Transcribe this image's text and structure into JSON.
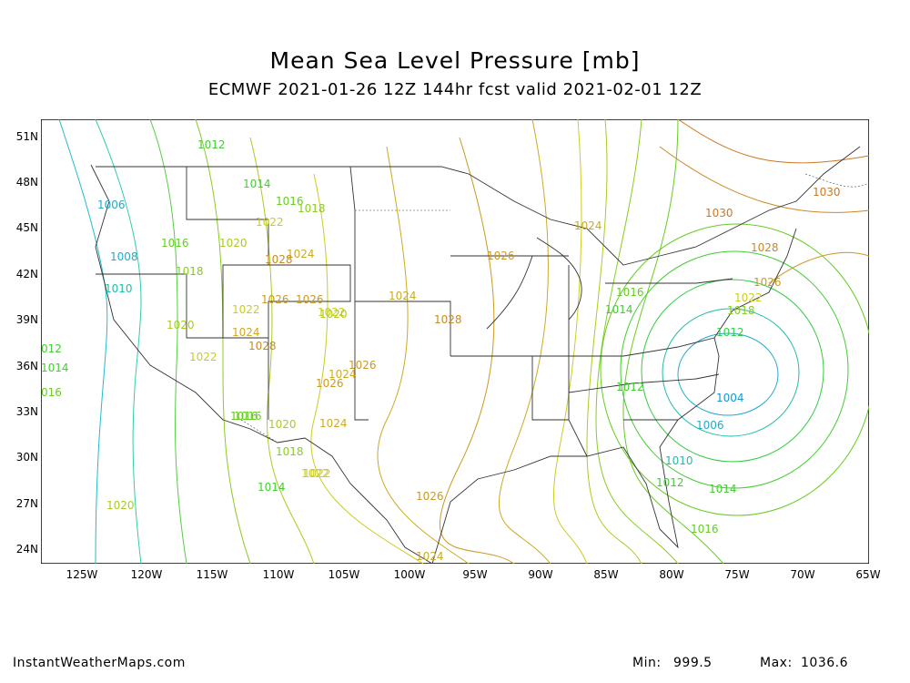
{
  "title": "Mean Sea Level Pressure [mb]",
  "subtitle": "ECMWF 2021-01-26 12Z 144hr fcst valid 2021-02-01 12Z",
  "lat_labels": [
    "51N",
    "48N",
    "45N",
    "42N",
    "39N",
    "36N",
    "33N",
    "30N",
    "27N",
    "24N"
  ],
  "lon_labels": [
    "125W",
    "120W",
    "115W",
    "110W",
    "105W",
    "100W",
    "95W",
    "90W",
    "85W",
    "80W",
    "75W",
    "70W",
    "65W"
  ],
  "isobar_labels": [
    {
      "text": "1012",
      "color": "#44cc33"
    },
    {
      "text": "1014",
      "color": "#44cc33"
    },
    {
      "text": "1016",
      "color": "#66cc22"
    },
    {
      "text": "1018",
      "color": "#88cc22"
    },
    {
      "text": "1006",
      "color": "#22aacc"
    },
    {
      "text": "1016",
      "color": "#66cc22"
    },
    {
      "text": "1008",
      "color": "#22aacc"
    },
    {
      "text": "1018",
      "color": "#88cc22"
    },
    {
      "text": "1010",
      "color": "#22bbaa"
    },
    {
      "text": "1020",
      "color": "#aacc22"
    },
    {
      "text": "1022",
      "color": "#cccc22"
    },
    {
      "text": "1020",
      "color": "#aacc22"
    },
    {
      "text": "1022",
      "color": "#cccc22"
    },
    {
      "text": "1024",
      "color": "#ccaa22"
    },
    {
      "text": "1026",
      "color": "#cc9922"
    },
    {
      "text": "1028",
      "color": "#cc8822"
    },
    {
      "text": "1026",
      "color": "#cc9922"
    },
    {
      "text": "1022",
      "color": "#cccc22"
    },
    {
      "text": "1024",
      "color": "#ccaa22"
    },
    {
      "text": "1028",
      "color": "#cc8822"
    },
    {
      "text": "1022",
      "color": "#cccc22"
    },
    {
      "text": "1024",
      "color": "#ccaa22"
    },
    {
      "text": "1026",
      "color": "#cc9922"
    },
    {
      "text": "1026",
      "color": "#cc9922"
    },
    {
      "text": "1024",
      "color": "#ccaa22"
    },
    {
      "text": "1016",
      "color": "#66cc22"
    },
    {
      "text": "1020",
      "color": "#aacc22"
    },
    {
      "text": "1018",
      "color": "#88cc22"
    },
    {
      "text": "1022",
      "color": "#cccc22"
    },
    {
      "text": "1014",
      "color": "#44cc33"
    },
    {
      "text": "1020",
      "color": "#aacc22"
    },
    {
      "text": "1026",
      "color": "#cc9922"
    },
    {
      "text": "1024",
      "color": "#ccaa22"
    },
    {
      "text": "1028",
      "color": "#cc8822"
    },
    {
      "text": "1026",
      "color": "#cc9922"
    },
    {
      "text": "1024",
      "color": "#ccaa22"
    },
    {
      "text": "1030",
      "color": "#cc7722"
    },
    {
      "text": "1030",
      "color": "#cc7722"
    },
    {
      "text": "1028",
      "color": "#cc8822"
    },
    {
      "text": "1026",
      "color": "#cc9922"
    },
    {
      "text": "1024",
      "color": "#ccaa22"
    },
    {
      "text": "1022",
      "color": "#cccc22"
    },
    {
      "text": "1018",
      "color": "#88cc22"
    },
    {
      "text": "1016",
      "color": "#66cc22"
    },
    {
      "text": "1014",
      "color": "#44cc33"
    },
    {
      "text": "1012",
      "color": "#44cc33"
    },
    {
      "text": "1012",
      "color": "#33cc44"
    },
    {
      "text": "1004",
      "color": "#1199cc"
    },
    {
      "text": "1006",
      "color": "#22aacc"
    },
    {
      "text": "1010",
      "color": "#22bbaa"
    },
    {
      "text": "1012",
      "color": "#44cc33"
    },
    {
      "text": "1014",
      "color": "#44cc33"
    },
    {
      "text": "1016",
      "color": "#66cc22"
    },
    {
      "text": "012",
      "color": "#44cc33"
    },
    {
      "text": "1014",
      "color": "#44cc33"
    },
    {
      "text": "016",
      "color": "#66cc22"
    },
    {
      "text": "1020",
      "color": "#aacc22"
    },
    {
      "text": "1022",
      "color": "#cccc22"
    },
    {
      "text": "1016",
      "color": "#66cc22"
    }
  ],
  "footer": {
    "site": "InstantWeatherMaps.com",
    "min_label": "Min:",
    "min_value": "999.5",
    "max_label": "Max:",
    "max_value": "1036.6"
  }
}
